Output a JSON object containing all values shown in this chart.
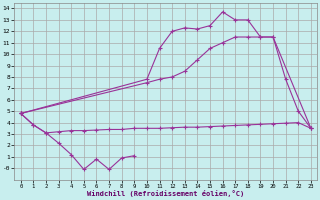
{
  "xlabel": "Windchill (Refroidissement éolien,°C)",
  "bg_color": "#c8eeee",
  "grid_color": "#aaaaaa",
  "line_color": "#993399",
  "xlim": [
    -0.5,
    23.5
  ],
  "ylim": [
    -1.0,
    14.5
  ],
  "xticks": [
    0,
    1,
    2,
    3,
    4,
    5,
    6,
    7,
    8,
    9,
    10,
    11,
    12,
    13,
    14,
    15,
    16,
    17,
    18,
    19,
    20,
    21,
    22,
    23
  ],
  "yticks": [
    0,
    1,
    2,
    3,
    4,
    5,
    6,
    7,
    8,
    9,
    10,
    11,
    12,
    13,
    14
  ],
  "s1_x": [
    0,
    1,
    2,
    3,
    4,
    5,
    6,
    7,
    8,
    9
  ],
  "s1_y": [
    4.8,
    3.8,
    3.1,
    2.2,
    1.2,
    -0.1,
    0.8,
    -0.1,
    0.9,
    1.1
  ],
  "s2_x": [
    0,
    1,
    2,
    3,
    4,
    5,
    6,
    7,
    8,
    9,
    10,
    11,
    12,
    13,
    14,
    15,
    16,
    17,
    18,
    19,
    20,
    21,
    22,
    23
  ],
  "s2_y": [
    4.8,
    3.8,
    3.1,
    3.2,
    3.3,
    3.3,
    3.35,
    3.4,
    3.4,
    3.5,
    3.5,
    3.5,
    3.55,
    3.6,
    3.6,
    3.65,
    3.7,
    3.75,
    3.8,
    3.85,
    3.9,
    3.95,
    4.0,
    3.5
  ],
  "s3_x": [
    0,
    10,
    11,
    12,
    13,
    14,
    15,
    16,
    17,
    18,
    19,
    20,
    23
  ],
  "s3_y": [
    4.8,
    7.8,
    10.5,
    12.0,
    12.3,
    12.2,
    12.5,
    13.7,
    13.0,
    13.0,
    11.5,
    11.5,
    3.5
  ],
  "s4_x": [
    0,
    10,
    11,
    12,
    13,
    14,
    15,
    16,
    17,
    18,
    19,
    20,
    21,
    22,
    23
  ],
  "s4_y": [
    4.8,
    7.5,
    7.8,
    8.0,
    8.5,
    9.5,
    10.5,
    11.0,
    11.5,
    11.5,
    11.5,
    11.5,
    7.8,
    5.0,
    3.5
  ]
}
